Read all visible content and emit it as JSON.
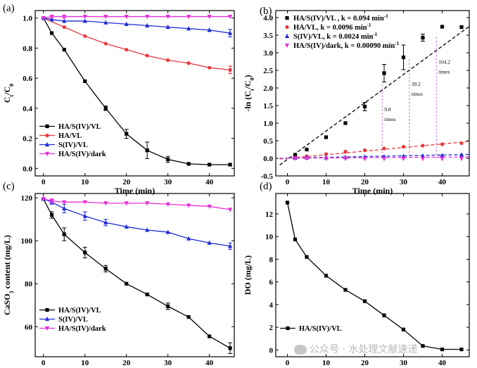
{
  "watermark": "公众号 · 水处理文献速递",
  "chart_data": [
    {
      "panel": "(a)",
      "type": "line",
      "xlabel": "Time (min)",
      "ylabel": "Ct/C0",
      "ylabel_main": "C",
      "ylabel_sub1": "t",
      "ylabel_mid": "/C",
      "ylabel_sub2": "0",
      "xlim": [
        -2,
        46
      ],
      "ylim": [
        -0.05,
        1.05
      ],
      "xticks": [
        0,
        10,
        20,
        30,
        40
      ],
      "yticks": [
        0.0,
        0.2,
        0.4,
        0.6,
        0.8,
        1.0
      ],
      "ytick_labels": [
        "0.0",
        "0.2",
        "0.4",
        "0.6",
        "0.8",
        "1.0"
      ],
      "legend_position": "bottom-left",
      "series": [
        {
          "name": "HA/S(IV)/VL",
          "color": "#000000",
          "marker": "square",
          "x": [
            0,
            2,
            5,
            10,
            15,
            20,
            25,
            30,
            35,
            40,
            45
          ],
          "values": [
            1.0,
            0.9,
            0.79,
            0.58,
            0.4,
            0.23,
            0.12,
            0.06,
            0.03,
            0.025,
            0.025
          ],
          "err": [
            0,
            0,
            0,
            0,
            0.015,
            0.03,
            0.055,
            0.02,
            0,
            0,
            0
          ]
        },
        {
          "name": "HA/VL",
          "color": "#e8383d",
          "marker": "circle",
          "x": [
            0,
            5,
            10,
            15,
            20,
            25,
            30,
            35,
            40,
            45
          ],
          "values": [
            1.0,
            0.94,
            0.88,
            0.83,
            0.79,
            0.75,
            0.72,
            0.7,
            0.67,
            0.655
          ],
          "err": [
            0,
            0,
            0,
            0,
            0,
            0,
            0,
            0,
            0,
            0.025
          ]
        },
        {
          "name": "S(IV)/VL",
          "color": "#1e2bd6",
          "marker": "triangle",
          "x": [
            0,
            2,
            5,
            10,
            15,
            20,
            25,
            30,
            35,
            40,
            45
          ],
          "values": [
            1.0,
            0.99,
            0.98,
            0.98,
            0.97,
            0.96,
            0.95,
            0.94,
            0.93,
            0.92,
            0.9
          ],
          "err": [
            0,
            0,
            0,
            0,
            0,
            0,
            0,
            0,
            0,
            0,
            0.025
          ]
        },
        {
          "name": "HA/S(IV)/dark",
          "color": "#e62fd8",
          "marker": "triangle-down",
          "x": [
            0,
            2,
            5,
            10,
            15,
            20,
            25,
            30,
            35,
            40,
            45
          ],
          "values": [
            1.0,
            1.01,
            1.01,
            1.01,
            1.01,
            1.01,
            1.01,
            1.01,
            1.01,
            1.01,
            1.01
          ],
          "err": [
            0,
            0.01,
            0.01,
            0,
            0,
            0,
            0,
            0,
            0,
            0,
            0
          ]
        }
      ]
    },
    {
      "panel": "(b)",
      "type": "scatter",
      "xlabel": "Time (min)",
      "ylabel": "-ln (Ct/C0)",
      "ylabel_main": "-ln (C",
      "ylabel_sub1": "t",
      "ylabel_mid": "/C",
      "ylabel_sub2": "0",
      "ylabel_end": ")",
      "xlim": [
        -3,
        47
      ],
      "ylim": [
        -0.5,
        4.2
      ],
      "xticks": [
        0,
        10,
        20,
        30,
        40
      ],
      "yticks": [
        -0.5,
        0.0,
        0.5,
        1.0,
        1.5,
        2.0,
        2.5,
        3.0,
        3.5,
        4.0
      ],
      "ytick_labels": [
        "-0.5",
        "0.0",
        "0.5",
        "1.0",
        "1.5",
        "2.0",
        "2.5",
        "3.0",
        "3.5",
        "4.0"
      ],
      "legend_position": "top-left",
      "series": [
        {
          "name": "HA/S(IV)/VL , k = 0.094 min",
          "sup": "-1",
          "color": "#000000",
          "marker": "square",
          "x": [
            2,
            5,
            10,
            15,
            20,
            25,
            30,
            35,
            40,
            45
          ],
          "values": [
            0.1,
            0.25,
            0.6,
            1.0,
            1.47,
            2.42,
            2.87,
            3.43,
            3.74,
            3.73
          ],
          "err": [
            0,
            0,
            0,
            0,
            0.12,
            0.25,
            0.35,
            0.1,
            0,
            0
          ],
          "fit": [
            [
              -2,
              -0.19
            ],
            [
              47,
              3.75
            ]
          ]
        },
        {
          "name": "HA/VL, k = 0.0096 min",
          "sup": "-1",
          "color": "#e8383d",
          "marker": "circle",
          "x": [
            2,
            5,
            10,
            15,
            20,
            25,
            30,
            35,
            40,
            45
          ],
          "values": [
            0.02,
            0.06,
            0.12,
            0.19,
            0.23,
            0.28,
            0.33,
            0.36,
            0.4,
            0.43
          ],
          "err": [
            0,
            0,
            0,
            0,
            0,
            0,
            0,
            0,
            0,
            0
          ],
          "fit": [
            [
              -2,
              -0.02
            ],
            [
              47,
              0.48
            ]
          ]
        },
        {
          "name": "S(IV)/VL, k = 0.0024 min",
          "sup": "-1",
          "color": "#1e2bd6",
          "marker": "triangle",
          "x": [
            2,
            5,
            10,
            15,
            20,
            25,
            30,
            35,
            40,
            45
          ],
          "values": [
            0.01,
            0.02,
            0.02,
            0.03,
            0.04,
            0.05,
            0.06,
            0.07,
            0.08,
            0.1
          ],
          "err": [
            0,
            0,
            0,
            0,
            0,
            0,
            0,
            0,
            0,
            0
          ],
          "fit": [
            [
              -2,
              0.0
            ],
            [
              47,
              0.11
            ]
          ]
        },
        {
          "name": "HA/S(IV)/dark, k = 0.00090 min",
          "sup": "-1",
          "color": "#e62fd8",
          "marker": "triangle-down",
          "x": [
            2,
            5,
            10,
            15,
            20,
            25,
            30,
            35,
            40,
            45
          ],
          "values": [
            0.0,
            0.0,
            -0.01,
            -0.01,
            -0.01,
            -0.01,
            -0.01,
            -0.01,
            -0.01,
            -0.01
          ],
          "err": [
            0,
            0,
            0,
            0,
            0,
            0,
            0,
            0,
            0,
            0
          ],
          "fit": [
            [
              -2,
              0.0
            ],
            [
              47,
              0.04
            ]
          ]
        }
      ],
      "annotations": [
        {
          "line1": "9.8",
          "line2": "times",
          "x": 24.5,
          "ytop": 2.1,
          "ybot": 0.0
        },
        {
          "line1": "39.2",
          "line2": "times",
          "x": 31.5,
          "ytop": 2.82,
          "ybot": 0.0
        },
        {
          "line1": "104.2",
          "line2": "times",
          "x": 38.5,
          "ytop": 3.45,
          "ybot": 0.0
        }
      ]
    },
    {
      "panel": "(c)",
      "type": "line",
      "xlabel": "Time (min)",
      "ylabel": "CaSO3 content (mg/L)",
      "ylabel_main": "CaSO",
      "ylabel_sub1": "3",
      "ylabel_mid": " content (mg/L)",
      "xlim": [
        -2,
        46
      ],
      "ylim": [
        46,
        122
      ],
      "xticks": [
        0,
        10,
        20,
        30,
        40
      ],
      "yticks": [
        60,
        80,
        100,
        120
      ],
      "ytick_labels": [
        "60",
        "80",
        "100",
        "120"
      ],
      "legend_position": "bottom-left",
      "series": [
        {
          "name": "HA/S(IV)/VL",
          "color": "#000000",
          "marker": "square",
          "x": [
            0,
            2,
            5,
            10,
            15,
            20,
            25,
            30,
            35,
            40,
            45
          ],
          "values": [
            119.5,
            112,
            103,
            94.5,
            87,
            80,
            75,
            69.5,
            64.5,
            55.5,
            50
          ],
          "err": [
            0,
            1.5,
            3,
            2.5,
            1.5,
            0,
            0,
            1.5,
            0,
            0,
            2.5
          ]
        },
        {
          "name": "S(IV)/VL",
          "color": "#1e2bd6",
          "marker": "triangle",
          "x": [
            0,
            2,
            5,
            10,
            15,
            20,
            25,
            30,
            35,
            40,
            45
          ],
          "values": [
            119.5,
            118,
            115,
            111.5,
            108.5,
            106.5,
            105,
            104,
            101,
            99,
            97.5
          ],
          "err": [
            0,
            1,
            2,
            2,
            1.5,
            0,
            0,
            0,
            0,
            0,
            1.5
          ]
        },
        {
          "name": "HA/S(IV)/dark",
          "color": "#e62fd8",
          "marker": "triangle-down",
          "x": [
            0,
            2,
            5,
            10,
            15,
            20,
            25,
            30,
            35,
            40,
            45
          ],
          "values": [
            119.5,
            118.5,
            118,
            118,
            117.5,
            117.5,
            117.5,
            117,
            116.5,
            116,
            114.5
          ],
          "err": [
            0,
            1,
            0,
            0,
            0,
            0,
            0,
            0,
            0,
            0,
            0
          ]
        }
      ]
    },
    {
      "panel": "(d)",
      "type": "line",
      "xlabel": "Time (min)",
      "ylabel": "DO (mg/L)",
      "ylabel_main": "DO (mg/L)",
      "xlim": [
        -3,
        47
      ],
      "ylim": [
        -0.6,
        13.8
      ],
      "xticks": [
        0,
        10,
        20,
        30,
        40
      ],
      "yticks": [
        0,
        2,
        4,
        6,
        8,
        10,
        12
      ],
      "ytick_labels": [
        "0",
        "2",
        "4",
        "6",
        "8",
        "10",
        "12"
      ],
      "legend_position": "bottom-left",
      "series": [
        {
          "name": "HA/S(IV)/VL",
          "color": "#000000",
          "marker": "square",
          "x": [
            0,
            2,
            5,
            10,
            15,
            20,
            25,
            30,
            35,
            40,
            45
          ],
          "values": [
            13.0,
            9.75,
            8.2,
            6.55,
            5.3,
            4.3,
            3.05,
            1.8,
            0.35,
            0.05,
            0.05
          ],
          "err": [
            0,
            0,
            0,
            0,
            0,
            0,
            0,
            0,
            0,
            0,
            0
          ]
        }
      ]
    }
  ]
}
